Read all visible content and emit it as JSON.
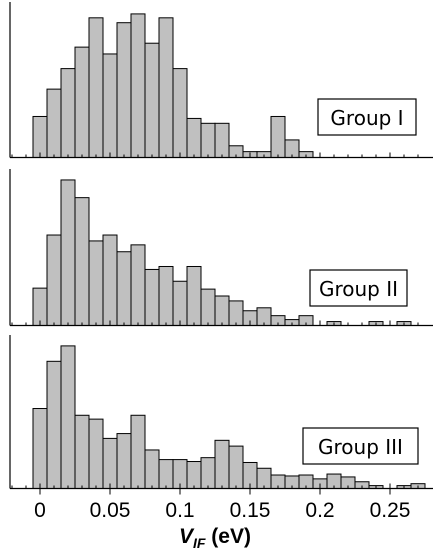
{
  "chart_data": {
    "type": "bar",
    "xlabel": {
      "main": "V",
      "sub": "IF",
      "unit": " (eV)"
    },
    "xlim": [
      -0.02,
      0.28
    ],
    "bin_width": 0.01,
    "x_ticks": [
      0,
      0.05,
      0.1,
      0.15,
      0.2,
      0.25
    ],
    "x_tick_labels": [
      "0",
      "0.05",
      "0.1",
      "0.15",
      "0.2",
      "0.25"
    ],
    "panels": [
      {
        "name": "Group I",
        "ymax": 151,
        "bin_starts": [
          -0.005,
          0.005,
          0.015,
          0.025,
          0.035,
          0.045,
          0.055,
          0.065,
          0.075,
          0.085,
          0.095,
          0.105,
          0.115,
          0.125,
          0.135,
          0.145,
          0.155,
          0.165,
          0.175,
          0.185
        ],
        "values": [
          42,
          70,
          91,
          113,
          143,
          106,
          138,
          147,
          117,
          143,
          91,
          40,
          35,
          35,
          12,
          6,
          6,
          42,
          18,
          6
        ]
      },
      {
        "name": "Group II",
        "ymax": 151,
        "bin_starts": [
          -0.005,
          0.005,
          0.015,
          0.025,
          0.035,
          0.045,
          0.055,
          0.065,
          0.075,
          0.085,
          0.095,
          0.105,
          0.115,
          0.125,
          0.135,
          0.145,
          0.155,
          0.165,
          0.175,
          0.185,
          0.205,
          0.235,
          0.255
        ],
        "values": [
          38,
          92,
          148,
          130,
          86,
          92,
          75,
          82,
          57,
          60,
          45,
          60,
          37,
          30,
          25,
          15,
          18,
          10,
          6,
          10,
          4,
          4,
          4
        ]
      },
      {
        "name": "Group III",
        "ymax": 151,
        "bin_starts": [
          -0.005,
          0.005,
          0.015,
          0.025,
          0.035,
          0.045,
          0.055,
          0.065,
          0.075,
          0.085,
          0.095,
          0.105,
          0.115,
          0.125,
          0.135,
          0.145,
          0.155,
          0.165,
          0.175,
          0.185,
          0.195,
          0.205,
          0.215,
          0.225,
          0.235,
          0.255,
          0.265
        ],
        "values": [
          83,
          132,
          148,
          76,
          72,
          52,
          57,
          76,
          40,
          30,
          30,
          28,
          32,
          50,
          44,
          27,
          21,
          14,
          13,
          14,
          10,
          15,
          12,
          7,
          3,
          3,
          5
        ]
      }
    ]
  }
}
